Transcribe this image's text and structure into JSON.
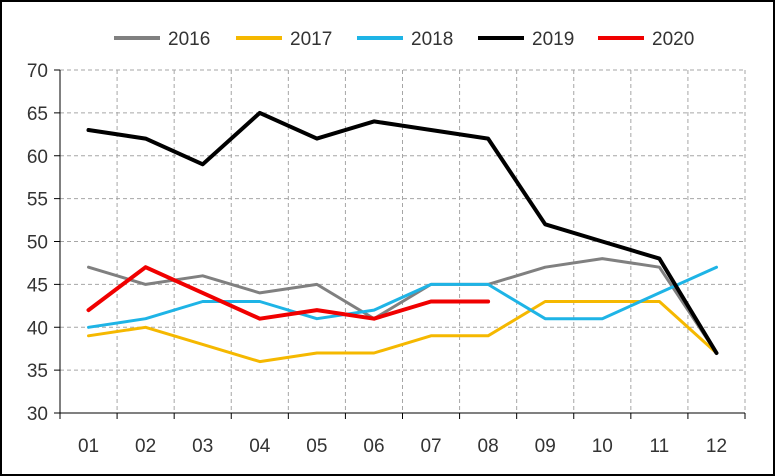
{
  "chart_data": {
    "type": "line",
    "title": "",
    "xlabel": "",
    "ylabel": "",
    "categories": [
      "01",
      "02",
      "03",
      "04",
      "05",
      "06",
      "07",
      "08",
      "09",
      "10",
      "11",
      "12"
    ],
    "ylim": [
      30,
      70
    ],
    "yticks": [
      30,
      35,
      40,
      45,
      50,
      55,
      60,
      65,
      70
    ],
    "grid": "horizontal and vertical dashed",
    "legend_position": "top",
    "series": [
      {
        "name": "2016",
        "color": "#808080",
        "values": [
          47,
          45,
          46,
          44,
          45,
          41,
          45,
          45,
          47,
          48,
          47,
          37
        ]
      },
      {
        "name": "2017",
        "color": "#F5B800",
        "values": [
          39,
          40,
          38,
          36,
          37,
          37,
          39,
          39,
          43,
          43,
          43,
          37
        ]
      },
      {
        "name": "2018",
        "color": "#1EB4E6",
        "values": [
          40,
          41,
          43,
          43,
          41,
          42,
          45,
          45,
          41,
          41,
          44,
          47
        ]
      },
      {
        "name": "2019",
        "color": "#000000",
        "values": [
          63,
          62,
          59,
          65,
          62,
          64,
          63,
          62,
          52,
          50,
          48,
          37
        ]
      },
      {
        "name": "2020",
        "color": "#F00000",
        "values": [
          42,
          47,
          44,
          41,
          42,
          41,
          43,
          43,
          null,
          null,
          null,
          null
        ]
      }
    ]
  }
}
